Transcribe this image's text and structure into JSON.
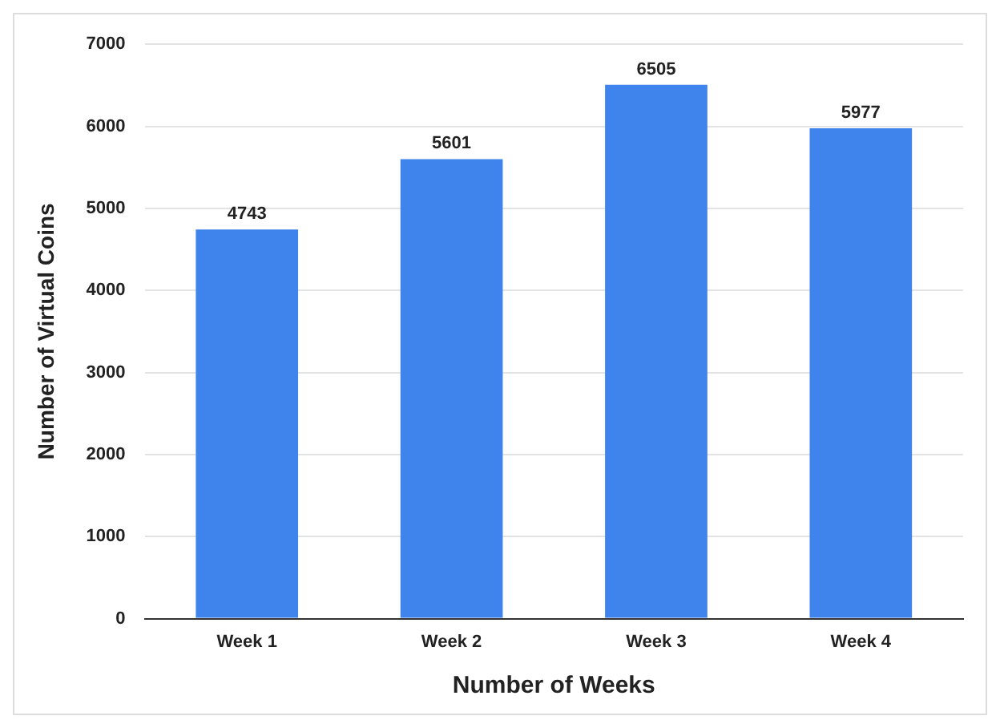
{
  "chart_data": {
    "type": "bar",
    "xlabel": "Number of Weeks",
    "ylabel": "Number of Virtual Coins",
    "categories": [
      "Week 1",
      "Week 2",
      "Week 3",
      "Week 4"
    ],
    "values": [
      4743,
      5601,
      6505,
      5977
    ],
    "color": "#3f83ec",
    "ylim": [
      0,
      7000
    ],
    "yticks": [
      0,
      1000,
      2000,
      3000,
      4000,
      5000,
      6000,
      7000
    ],
    "grid": "y",
    "data_labels": true,
    "legend": false
  }
}
